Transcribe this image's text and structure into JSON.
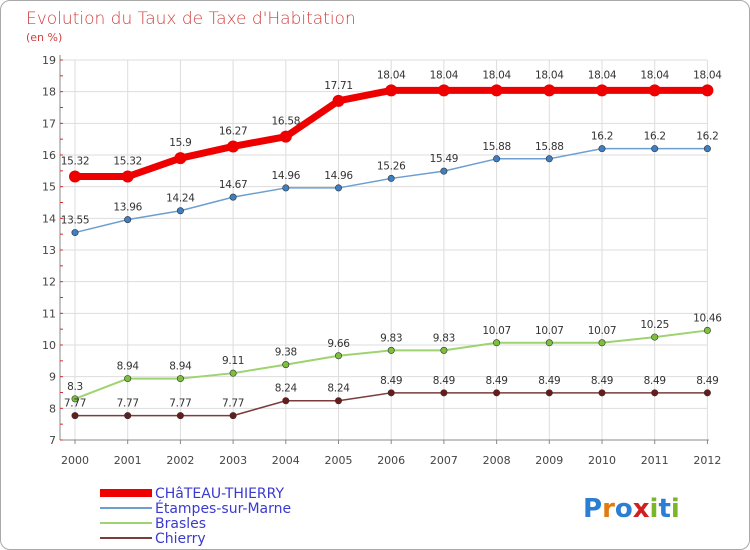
{
  "header": {
    "title": "Evolution du Taux de Taxe d'Habitation",
    "subtitle": "(en %)"
  },
  "logo": {
    "text": "Proxiti",
    "letters": [
      "P",
      "r",
      "o",
      "x",
      "i",
      "t",
      "i"
    ],
    "colors": [
      "#2a7fd4",
      "#e07a12",
      "#2a7fd4",
      "#d02020",
      "#7ab52a",
      "#2a7fd4",
      "#7ab52a"
    ]
  },
  "chart_data": {
    "type": "line",
    "title": "Evolution du Taux de Taxe d'Habitation",
    "subtitle": "(en %)",
    "x": [
      "2000",
      "2001",
      "2002",
      "2003",
      "2004",
      "2005",
      "2006",
      "2007",
      "2008",
      "2009",
      "2010",
      "2011",
      "2012"
    ],
    "ylim": [
      7,
      19
    ],
    "yticks": [
      7,
      8,
      9,
      10,
      11,
      12,
      13,
      14,
      15,
      16,
      17,
      18,
      19
    ],
    "grid": true,
    "legend_position": "bottom-left",
    "series": [
      {
        "name": "CHâTEAU-THIERRY",
        "color": "#ee0000",
        "marker": "#ee0000",
        "width": 7,
        "values": [
          15.32,
          15.32,
          15.9,
          16.27,
          16.58,
          17.71,
          18.04,
          18.04,
          18.04,
          18.04,
          18.04,
          18.04,
          18.04
        ],
        "labels": [
          "15.32",
          "15.32",
          "15.9",
          "16.27",
          "16.58",
          "17.71",
          "18.04",
          "18.04",
          "18.04",
          "18.04",
          "18.04",
          "18.04",
          "18.04"
        ]
      },
      {
        "name": "Étampes-sur-Marne",
        "color": "#6d9ed0",
        "marker": "#3d7fc2",
        "width": 1.5,
        "values": [
          13.55,
          13.96,
          14.24,
          14.67,
          14.96,
          14.96,
          15.26,
          15.49,
          15.88,
          15.88,
          16.2,
          16.2,
          16.2
        ],
        "labels": [
          "13.55",
          "13.96",
          "14.24",
          "14.67",
          "14.96",
          "14.96",
          "15.26",
          "15.49",
          "15.88",
          "15.88",
          "16.2",
          "16.2",
          "16.2"
        ]
      },
      {
        "name": "Brasles",
        "color": "#9ed36f",
        "marker": "#7cc03c",
        "width": 2,
        "values": [
          8.3,
          8.94,
          8.94,
          9.11,
          9.38,
          9.66,
          9.83,
          9.83,
          10.07,
          10.07,
          10.07,
          10.25,
          10.46
        ],
        "labels": [
          "8.3",
          "8.94",
          "8.94",
          "9.11",
          "9.38",
          "9.66",
          "9.83",
          "9.83",
          "10.07",
          "10.07",
          "10.07",
          "10.25",
          "10.46"
        ]
      },
      {
        "name": "Chierry",
        "color": "#7a3c3c",
        "marker": "#6a1a1a",
        "width": 1.5,
        "values": [
          7.77,
          7.77,
          7.77,
          7.77,
          8.24,
          8.24,
          8.49,
          8.49,
          8.49,
          8.49,
          8.49,
          8.49,
          8.49
        ],
        "labels": [
          "7.77",
          "7.77",
          "7.77",
          "7.77",
          "8.24",
          "8.24",
          "8.49",
          "8.49",
          "8.49",
          "8.49",
          "8.49",
          "8.49",
          "8.49"
        ]
      }
    ]
  }
}
